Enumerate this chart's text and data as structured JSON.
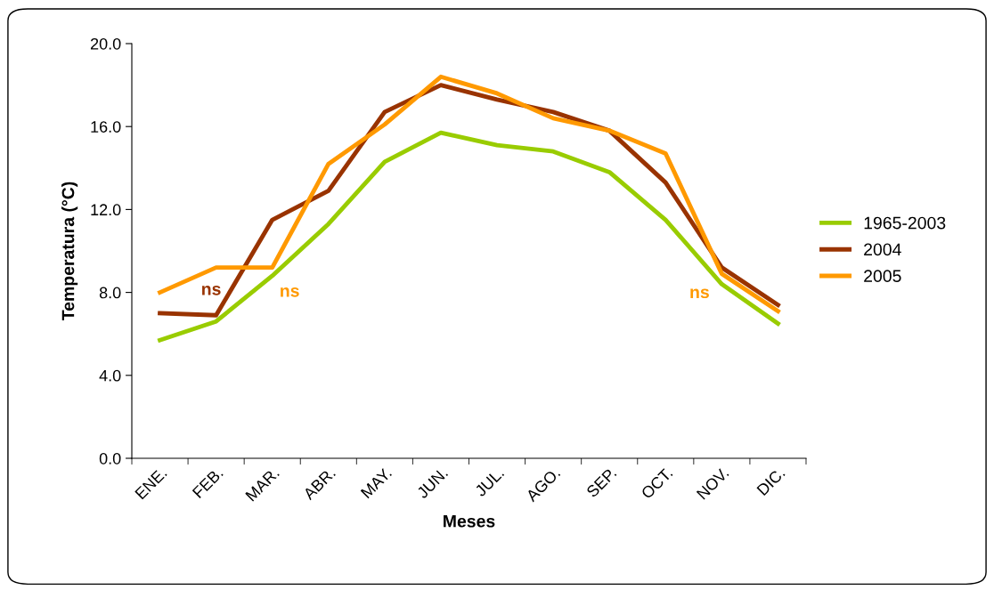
{
  "chart_data": {
    "type": "line",
    "xlabel": "Meses",
    "ylabel": "Temperatura (°C)",
    "categories": [
      "ENE.",
      "FEB.",
      "MAR.",
      "ABR.",
      "MAY.",
      "JUN.",
      "JUL.",
      "AGO.",
      "SEP.",
      "OCT.",
      "NOV.",
      "DIC."
    ],
    "series": [
      {
        "name": "1965-2003",
        "color": "#99cc00",
        "values": [
          5.7,
          6.6,
          8.8,
          11.3,
          14.3,
          15.7,
          15.1,
          14.8,
          13.8,
          11.5,
          8.4,
          6.5
        ]
      },
      {
        "name": "2004",
        "color": "#993300",
        "values": [
          7.0,
          6.9,
          11.5,
          12.9,
          16.7,
          18.0,
          17.3,
          16.7,
          15.8,
          13.3,
          9.2,
          7.4
        ]
      },
      {
        "name": "2005",
        "color": "#ff9900",
        "values": [
          8.0,
          9.2,
          9.2,
          14.2,
          16.1,
          18.4,
          17.6,
          16.4,
          15.8,
          14.7,
          8.9,
          7.1
        ]
      }
    ],
    "ylim": [
      0,
      20
    ],
    "yticks": [
      {
        "value": 0,
        "label": "0.0"
      },
      {
        "value": 4,
        "label": "4.0"
      },
      {
        "value": 8,
        "label": "8.0"
      },
      {
        "value": 12,
        "label": "12.0"
      },
      {
        "value": 16,
        "label": "16.0"
      },
      {
        "value": 20,
        "label": "20.0"
      }
    ],
    "annotations": [
      {
        "text": "ns",
        "x": "FEB.",
        "y": 6.9
      },
      {
        "text": "ns",
        "x": "MAR.",
        "y": 9.2
      },
      {
        "text": "ns",
        "x": "NOV.",
        "y": 8.9
      }
    ],
    "legend": "right",
    "grid": false,
    "marker": "none",
    "line_style": "solid"
  }
}
